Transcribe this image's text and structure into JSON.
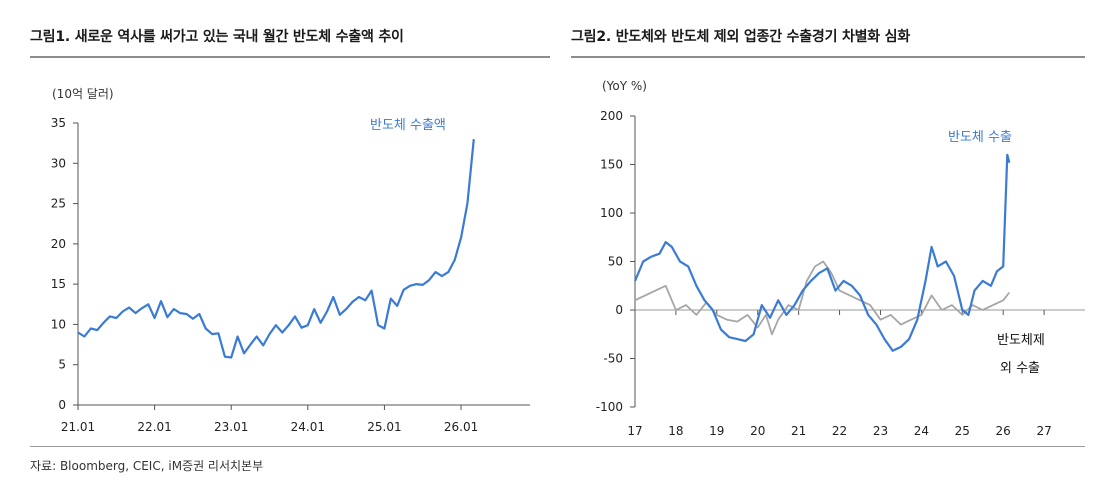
{
  "charts": {
    "left": {
      "title": "그림1.  새로운 역사를 써가고 있는 국내 월간 반도체 수출액 추이"
    },
    "right": {
      "title": "그림2.  반도체와 반도체 제외 업종간 수출경기 차별화 심화"
    }
  },
  "source": "자료: Bloomberg, CEIC, iM증권 리서치본부",
  "colors": {
    "blue": "#3a7bd5",
    "gray": "#a6a6a6",
    "axis": "#555555",
    "zero": "#9a9a9a"
  },
  "chart_data": [
    {
      "type": "line",
      "title": "새로운 역사를 써가고 있는 국내 월간 반도체 수출액 추이",
      "ylabel": "(10억 달러)",
      "xlabel": "",
      "ylim": [
        0,
        35
      ],
      "yticks": [
        0,
        5,
        10,
        15,
        20,
        25,
        30,
        35
      ],
      "xticks": [
        "21.01",
        "22.01",
        "23.01",
        "24.01",
        "25.01",
        "26.01"
      ],
      "xrange": [
        2021.0,
        2026.9
      ],
      "series": [
        {
          "name": "반도체 수출액",
          "x": [
            2021.0,
            2021.083,
            2021.167,
            2021.25,
            2021.333,
            2021.417,
            2021.5,
            2021.583,
            2021.667,
            2021.75,
            2021.833,
            2021.917,
            2022.0,
            2022.083,
            2022.167,
            2022.25,
            2022.333,
            2022.417,
            2022.5,
            2022.583,
            2022.667,
            2022.75,
            2022.833,
            2022.917,
            2023.0,
            2023.083,
            2023.167,
            2023.25,
            2023.333,
            2023.417,
            2023.5,
            2023.583,
            2023.667,
            2023.75,
            2023.833,
            2023.917,
            2024.0,
            2024.083,
            2024.167,
            2024.25,
            2024.333,
            2024.417,
            2024.5,
            2024.583,
            2024.667,
            2024.75,
            2024.833,
            2024.917,
            2025.0,
            2025.083,
            2025.167,
            2025.25,
            2025.333,
            2025.417,
            2025.5,
            2025.583,
            2025.667,
            2025.75,
            2025.833,
            2025.917,
            2026.0,
            2026.083,
            2026.167
          ],
          "values": [
            9.0,
            8.5,
            9.5,
            9.3,
            10.2,
            11.0,
            10.8,
            11.6,
            12.1,
            11.4,
            12.0,
            12.5,
            10.8,
            12.9,
            10.9,
            11.9,
            11.4,
            11.3,
            10.7,
            11.3,
            9.5,
            8.8,
            8.9,
            6.0,
            5.9,
            8.5,
            6.4,
            7.5,
            8.5,
            7.4,
            8.8,
            9.9,
            9.0,
            9.9,
            11.0,
            9.6,
            9.9,
            11.9,
            10.2,
            11.6,
            13.4,
            11.2,
            11.9,
            12.8,
            13.4,
            13.0,
            14.2,
            9.9,
            9.5,
            13.2,
            12.3,
            14.3,
            14.8,
            15.0,
            14.9,
            15.5,
            16.5,
            16.0,
            16.5,
            18.0,
            20.8,
            25.0,
            33.0
          ]
        }
      ],
      "annotations": [
        "반도체 수출액"
      ]
    },
    {
      "type": "line",
      "title": "반도체와 반도체 제외 업종간 수출경기 차별화 심화",
      "ylabel": "(YoY %)",
      "xlabel": "",
      "ylim": [
        -100,
        200
      ],
      "yticks": [
        -100,
        -50,
        0,
        50,
        100,
        150,
        200
      ],
      "xticks": [
        "17",
        "18",
        "19",
        "20",
        "21",
        "22",
        "23",
        "24",
        "25",
        "26",
        "27"
      ],
      "xrange": [
        17,
        28
      ],
      "series": [
        {
          "name": "반도체 수출",
          "x": [
            17.0,
            17.2,
            17.4,
            17.6,
            17.75,
            17.9,
            18.1,
            18.3,
            18.5,
            18.7,
            18.9,
            19.1,
            19.3,
            19.5,
            19.7,
            19.9,
            20.1,
            20.3,
            20.5,
            20.7,
            20.9,
            21.1,
            21.3,
            21.5,
            21.7,
            21.9,
            22.1,
            22.3,
            22.5,
            22.7,
            22.9,
            23.1,
            23.3,
            23.5,
            23.7,
            23.9,
            24.1,
            24.25,
            24.4,
            24.6,
            24.8,
            25.0,
            25.15,
            25.3,
            25.5,
            25.7,
            25.85,
            26.0,
            26.1,
            26.15
          ],
          "values": [
            30,
            50,
            55,
            58,
            70,
            65,
            50,
            45,
            25,
            10,
            0,
            -20,
            -28,
            -30,
            -32,
            -25,
            5,
            -8,
            10,
            -5,
            5,
            20,
            30,
            38,
            43,
            20,
            30,
            25,
            15,
            -5,
            -15,
            -30,
            -42,
            -38,
            -30,
            -10,
            30,
            65,
            45,
            50,
            35,
            0,
            -5,
            20,
            30,
            25,
            40,
            45,
            160,
            152
          ]
        },
        {
          "name": "반도체제외 수출",
          "x": [
            17.0,
            17.25,
            17.5,
            17.75,
            18.0,
            18.25,
            18.5,
            18.75,
            19.0,
            19.25,
            19.5,
            19.75,
            20.0,
            20.2,
            20.35,
            20.5,
            20.75,
            21.0,
            21.2,
            21.4,
            21.6,
            21.8,
            22.0,
            22.25,
            22.5,
            22.75,
            23.0,
            23.25,
            23.5,
            23.75,
            24.0,
            24.25,
            24.5,
            24.75,
            25.0,
            25.25,
            25.5,
            25.75,
            26.0,
            26.15
          ],
          "values": [
            10,
            15,
            20,
            25,
            0,
            5,
            -5,
            8,
            -5,
            -10,
            -12,
            -5,
            -18,
            -5,
            -25,
            -10,
            5,
            0,
            30,
            45,
            50,
            38,
            20,
            15,
            10,
            5,
            -10,
            -5,
            -15,
            -10,
            -5,
            15,
            0,
            5,
            -5,
            5,
            0,
            5,
            10,
            18
          ]
        }
      ],
      "annotations": [
        "반도체 수출",
        "반도체제",
        "외 수출"
      ]
    }
  ]
}
